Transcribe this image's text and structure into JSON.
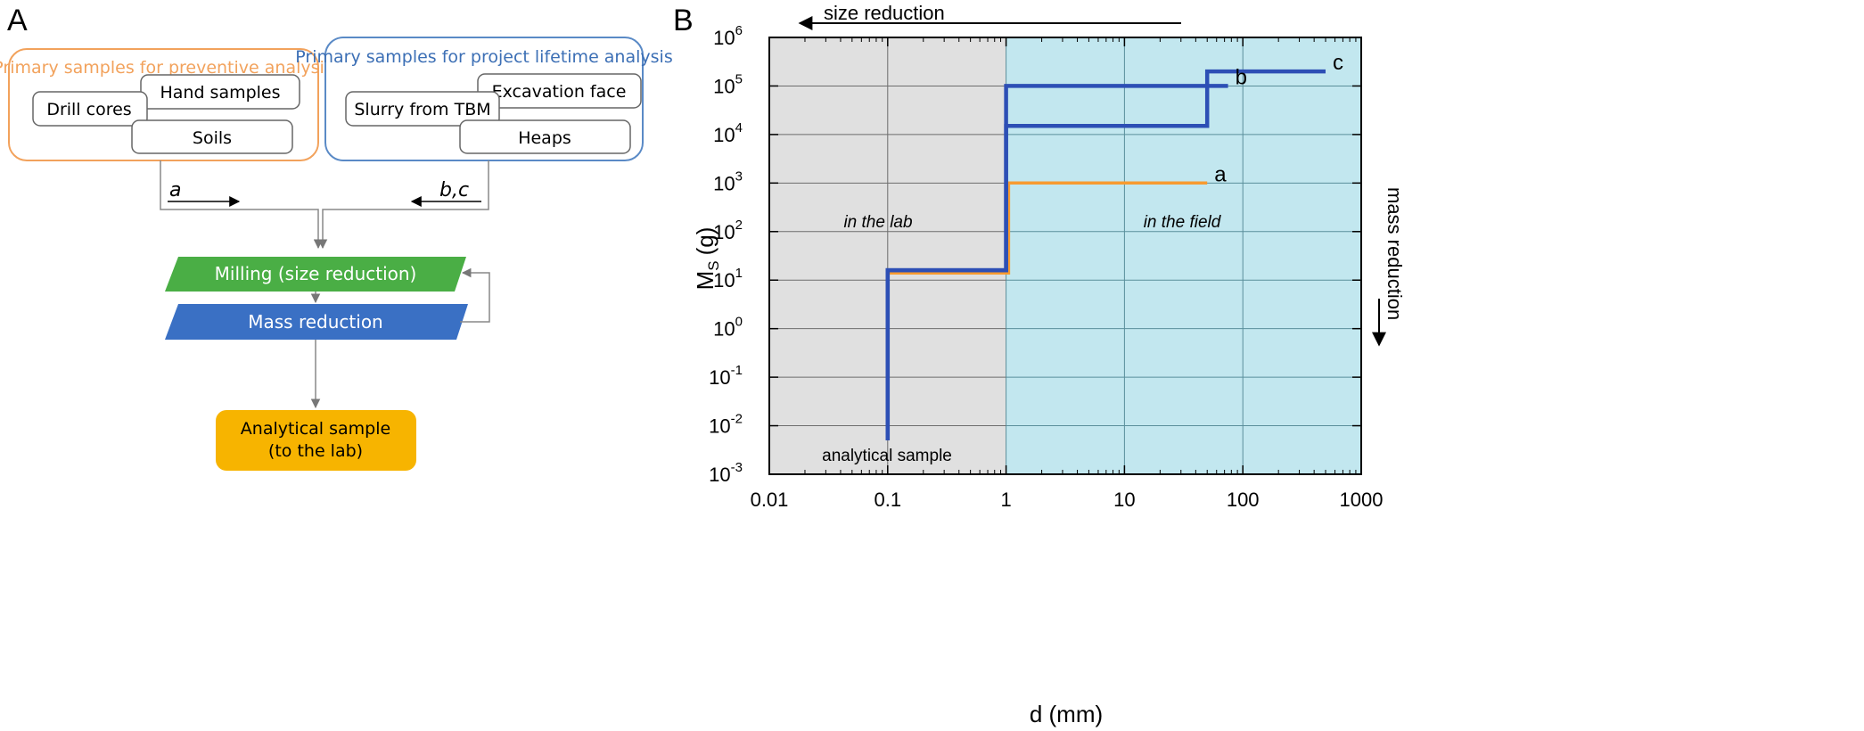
{
  "panel_a": {
    "label": "A",
    "preventive_group": {
      "title": "Primary samples for preventive analysis",
      "items": [
        "Hand samples",
        "Drill cores",
        "Soils"
      ]
    },
    "lifetime_group": {
      "title": "Primary samples for project lifetime analysis",
      "items": [
        "Excavation face",
        "Slurry from TBM",
        "Heaps"
      ]
    },
    "arrow_left_label": "a",
    "arrow_right_label": "b,c",
    "milling": "Milling (size reduction)",
    "mass_reduction": "Mass reduction",
    "analytical_sample_line1": "Analytical sample",
    "analytical_sample_line2": "(to the lab)",
    "colors": {
      "preventive": "#f2a25c",
      "lifetime": "#5a8ac6",
      "milling": "#4aae45",
      "mass": "#3a70c4",
      "analytical": "#f7b400"
    }
  },
  "panel_b": {
    "label": "B",
    "top_arrow_label": "size reduction",
    "right_arrow_label": "mass reduction",
    "region_lab": "in the lab",
    "region_field": "in the field",
    "analytical_sample_label": "analytical sample",
    "colors": {
      "lab_bg": "#e0e0e0",
      "field_bg": "#c2e7ef",
      "line_bc": "#2d4fb5",
      "line_a": "#f79b30"
    }
  },
  "chart_data": {
    "type": "line",
    "xlabel": "d (mm)",
    "ylabel": "M",
    "ylabel_sub": "S",
    "ylabel_unit": "(g)",
    "x_scale": "log",
    "y_scale": "log",
    "xlim": [
      0.01,
      1000
    ],
    "ylim": [
      0.001,
      1000000
    ],
    "x_ticks": [
      "0.01",
      "0.1",
      "1",
      "10",
      "100",
      "1000"
    ],
    "y_tick_exponents": [
      "-3",
      "-2",
      "-1",
      "0",
      "1",
      "2",
      "3",
      "4",
      "5",
      "6"
    ],
    "grid": true,
    "series": [
      {
        "name": "a",
        "x": [
          0.1,
          0.1,
          1.05,
          1.05,
          50
        ],
        "y": [
          0.005,
          14,
          14,
          1000,
          1000
        ]
      },
      {
        "name": "b",
        "x": [
          0.1,
          0.1,
          1,
          1,
          75
        ],
        "y": [
          0.005,
          16,
          16,
          100000,
          100000
        ]
      },
      {
        "name": "c",
        "x": [
          0.1,
          0.1,
          1,
          1,
          50,
          50,
          500
        ],
        "y": [
          0.005,
          16,
          16,
          15000,
          15000,
          200000,
          200000
        ]
      }
    ]
  }
}
